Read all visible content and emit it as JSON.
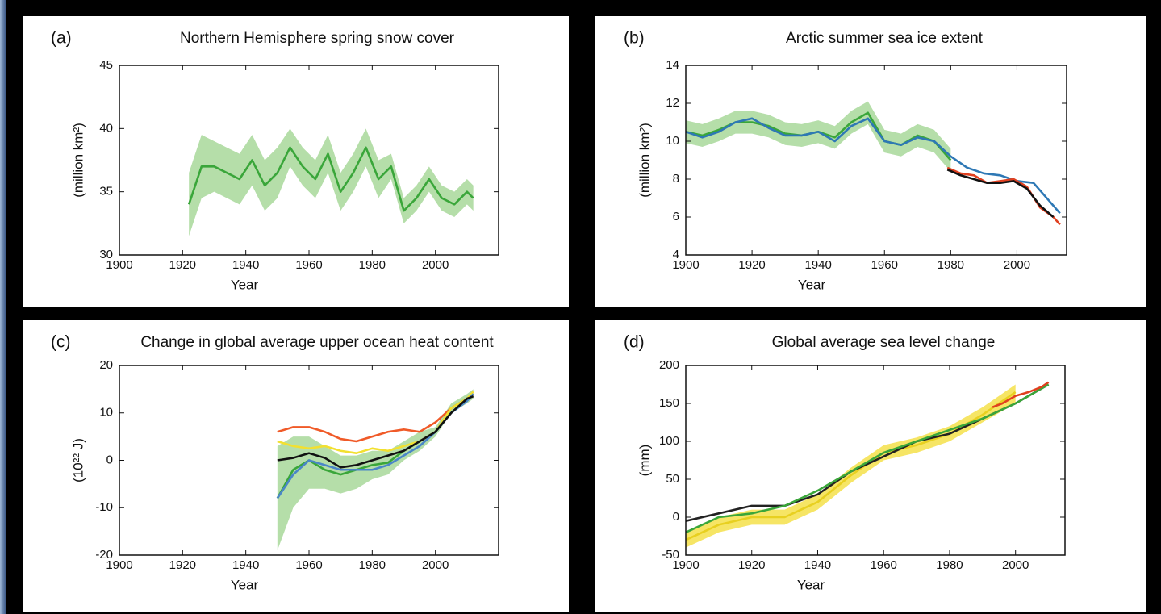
{
  "chart_data": [
    {
      "type": "line",
      "panel": "(a)",
      "title": "Northern Hemisphere spring snow cover",
      "x_label": "Year",
      "y_label": "(million km²)",
      "xlim": [
        1900,
        2020
      ],
      "ylim": [
        30,
        45
      ],
      "xticks": [
        1900,
        1920,
        1940,
        1960,
        1980,
        2000
      ],
      "yticks": [
        30,
        35,
        40,
        45
      ],
      "series": [
        {
          "color": "#3aa63a",
          "band_color": "#a8d89a",
          "x": [
            1922,
            1926,
            1930,
            1934,
            1938,
            1942,
            1946,
            1950,
            1954,
            1958,
            1962,
            1966,
            1970,
            1974,
            1978,
            1982,
            1986,
            1990,
            1994,
            1998,
            2002,
            2006,
            2010,
            2012
          ],
          "values": [
            34,
            37,
            37,
            36.5,
            36,
            37.5,
            35.5,
            36.5,
            38.5,
            37,
            36,
            38,
            35,
            36.5,
            38.5,
            36,
            37,
            33.5,
            34.5,
            36,
            34.5,
            34,
            35,
            34.5
          ],
          "lower": [
            31.5,
            34.5,
            35,
            34.5,
            34,
            35.5,
            33.5,
            34.5,
            37,
            35.5,
            34.5,
            36.5,
            33.5,
            35,
            37,
            34.5,
            36,
            32.5,
            33.5,
            35,
            33.5,
            33,
            34,
            33.5
          ],
          "upper": [
            36.5,
            39.5,
            39,
            38.5,
            38,
            39.5,
            37.5,
            38.5,
            40,
            38.5,
            37.5,
            39.5,
            36.5,
            38,
            40,
            37.5,
            38,
            34.5,
            35.5,
            37,
            35.5,
            35,
            36,
            35.5
          ]
        }
      ]
    },
    {
      "type": "line",
      "panel": "(b)",
      "title": "Arctic summer sea ice extent",
      "x_label": "Year",
      "y_label": "(million km²)",
      "xlim": [
        1900,
        2015
      ],
      "ylim": [
        4,
        14
      ],
      "xticks": [
        1900,
        1920,
        1940,
        1960,
        1980,
        2000
      ],
      "yticks": [
        4,
        6,
        8,
        10,
        12,
        14
      ],
      "series": [
        {
          "color": "#3aa63a",
          "band_color": "#a8d89a",
          "x": [
            1900,
            1905,
            1910,
            1915,
            1920,
            1925,
            1930,
            1935,
            1940,
            1945,
            1950,
            1955,
            1960,
            1965,
            1970,
            1975,
            1980
          ],
          "values": [
            10.5,
            10.3,
            10.6,
            11.0,
            11.0,
            10.8,
            10.4,
            10.3,
            10.5,
            10.2,
            11.0,
            11.5,
            10.0,
            9.8,
            10.3,
            10.0,
            9.0
          ],
          "lower": [
            9.9,
            9.7,
            10.0,
            10.4,
            10.4,
            10.2,
            9.8,
            9.7,
            9.9,
            9.6,
            10.4,
            10.9,
            9.4,
            9.2,
            9.7,
            9.4,
            8.4
          ],
          "upper": [
            11.1,
            10.9,
            11.2,
            11.6,
            11.6,
            11.4,
            11.0,
            10.9,
            11.1,
            10.8,
            11.6,
            12.1,
            10.6,
            10.4,
            10.9,
            10.6,
            9.6
          ]
        },
        {
          "color": "#2e78b5",
          "x": [
            1900,
            1905,
            1910,
            1915,
            1920,
            1925,
            1930,
            1935,
            1940,
            1945,
            1950,
            1955,
            1960,
            1965,
            1970,
            1975,
            1980,
            1985,
            1990,
            1995,
            2000,
            2005,
            2010,
            2013
          ],
          "values": [
            10.5,
            10.2,
            10.5,
            11.0,
            11.2,
            10.7,
            10.3,
            10.3,
            10.5,
            10.0,
            10.8,
            11.2,
            10.0,
            9.8,
            10.2,
            10.0,
            9.2,
            8.6,
            8.3,
            8.2,
            7.9,
            7.8,
            6.8,
            6.2
          ]
        },
        {
          "color": "#e04020",
          "x": [
            1979,
            1983,
            1987,
            1991,
            1995,
            1999,
            2003,
            2007,
            2011,
            2013
          ],
          "values": [
            8.6,
            8.3,
            8.2,
            7.8,
            7.9,
            8.0,
            7.6,
            6.5,
            6.0,
            5.6
          ]
        },
        {
          "color": "#111111",
          "x": [
            1979,
            1983,
            1987,
            1991,
            1995,
            1999,
            2003,
            2007,
            2011
          ],
          "values": [
            8.5,
            8.2,
            8.0,
            7.8,
            7.8,
            7.9,
            7.5,
            6.6,
            6.0
          ]
        }
      ]
    },
    {
      "type": "line",
      "panel": "(c)",
      "title": "Change in global average upper ocean heat content",
      "x_label": "Year",
      "y_label": "(10²² J)",
      "xlim": [
        1900,
        2020
      ],
      "ylim": [
        -20,
        20
      ],
      "xticks": [
        1900,
        1920,
        1940,
        1960,
        1980,
        2000
      ],
      "yticks": [
        -20,
        -10,
        0,
        10,
        20
      ],
      "series": [
        {
          "color": "#3aa63a",
          "band_color": "#a8d89a",
          "x": [
            1950,
            1955,
            1960,
            1965,
            1970,
            1975,
            1980,
            1985,
            1990,
            1995,
            2000,
            2005,
            2010,
            2012
          ],
          "values": [
            -8,
            -2,
            0,
            -2,
            -3,
            -2,
            -1,
            -0.5,
            2,
            4,
            6,
            11,
            13,
            14
          ],
          "lower": [
            -19,
            -10,
            -6,
            -6,
            -7,
            -6,
            -4,
            -3,
            0,
            2,
            5,
            10,
            12,
            13
          ],
          "upper": [
            3,
            5,
            5,
            3,
            1,
            1,
            2,
            2,
            4,
            6,
            7,
            12,
            14,
            15
          ]
        },
        {
          "color": "#f05a28",
          "x": [
            1950,
            1955,
            1960,
            1965,
            1970,
            1975,
            1980,
            1985,
            1990,
            1995,
            2000,
            2005,
            2010,
            2012
          ],
          "values": [
            6,
            7,
            7,
            6,
            4.5,
            4,
            5,
            6,
            6.5,
            6,
            8,
            11,
            13,
            14
          ]
        },
        {
          "color": "#f2e030",
          "x": [
            1950,
            1955,
            1960,
            1965,
            1970,
            1975,
            1980,
            1985,
            1990,
            1995,
            2000,
            2005,
            2010,
            2012
          ],
          "values": [
            4,
            3,
            2.5,
            3,
            2,
            1.5,
            2.5,
            2,
            3,
            4,
            6,
            11,
            13,
            14.5
          ]
        },
        {
          "color": "#4a86c8",
          "x": [
            1950,
            1955,
            1960,
            1965,
            1970,
            1975,
            1980,
            1985,
            1990,
            1995,
            2000,
            2005,
            2010,
            2012
          ],
          "values": [
            -8,
            -3,
            0,
            -1,
            -2,
            -2,
            -2,
            -1,
            1,
            3,
            6,
            10,
            12.5,
            14
          ]
        },
        {
          "color": "#111111",
          "x": [
            1950,
            1955,
            1960,
            1965,
            1970,
            1975,
            1980,
            1985,
            1990,
            1995,
            2000,
            2005,
            2010,
            2012
          ],
          "values": [
            0,
            0.5,
            1.5,
            0.5,
            -1.5,
            -1,
            0,
            1,
            2,
            4,
            6,
            10,
            13,
            13.5
          ]
        }
      ]
    },
    {
      "type": "line",
      "panel": "(d)",
      "title": "Global average sea level change",
      "x_label": "Year",
      "y_label": "(mm)",
      "xlim": [
        1900,
        2015
      ],
      "ylim": [
        -50,
        200
      ],
      "xticks": [
        1900,
        1920,
        1940,
        1960,
        1980,
        2000
      ],
      "yticks": [
        -50,
        0,
        50,
        100,
        150,
        200
      ],
      "series": [
        {
          "color": "#e8d020",
          "band_color": "#f5e04a",
          "x": [
            1900,
            1910,
            1920,
            1930,
            1940,
            1950,
            1960,
            1970,
            1980,
            1990,
            2000
          ],
          "values": [
            -30,
            -10,
            0,
            0,
            20,
            55,
            85,
            95,
            110,
            135,
            165
          ],
          "lower": [
            -40,
            -20,
            -10,
            -10,
            10,
            45,
            75,
            85,
            100,
            125,
            150
          ],
          "upper": [
            -20,
            0,
            10,
            10,
            30,
            65,
            95,
            105,
            120,
            145,
            175
          ]
        },
        {
          "color": "#222222",
          "x": [
            1900,
            1910,
            1920,
            1930,
            1940,
            1950,
            1960,
            1970,
            1980,
            1990,
            2000,
            2010
          ],
          "values": [
            -5,
            5,
            15,
            15,
            30,
            60,
            80,
            100,
            110,
            130,
            150,
            175
          ]
        },
        {
          "color": "#3aa63a",
          "x": [
            1900,
            1910,
            1920,
            1930,
            1940,
            1950,
            1960,
            1970,
            1980,
            1990,
            2000,
            2010
          ],
          "values": [
            -20,
            0,
            5,
            15,
            35,
            60,
            85,
            100,
            115,
            130,
            150,
            175
          ]
        },
        {
          "color": "#e04020",
          "x": [
            1993,
            1996,
            2000,
            2004,
            2008,
            2010
          ],
          "values": [
            145,
            150,
            160,
            165,
            172,
            178
          ]
        }
      ]
    }
  ]
}
